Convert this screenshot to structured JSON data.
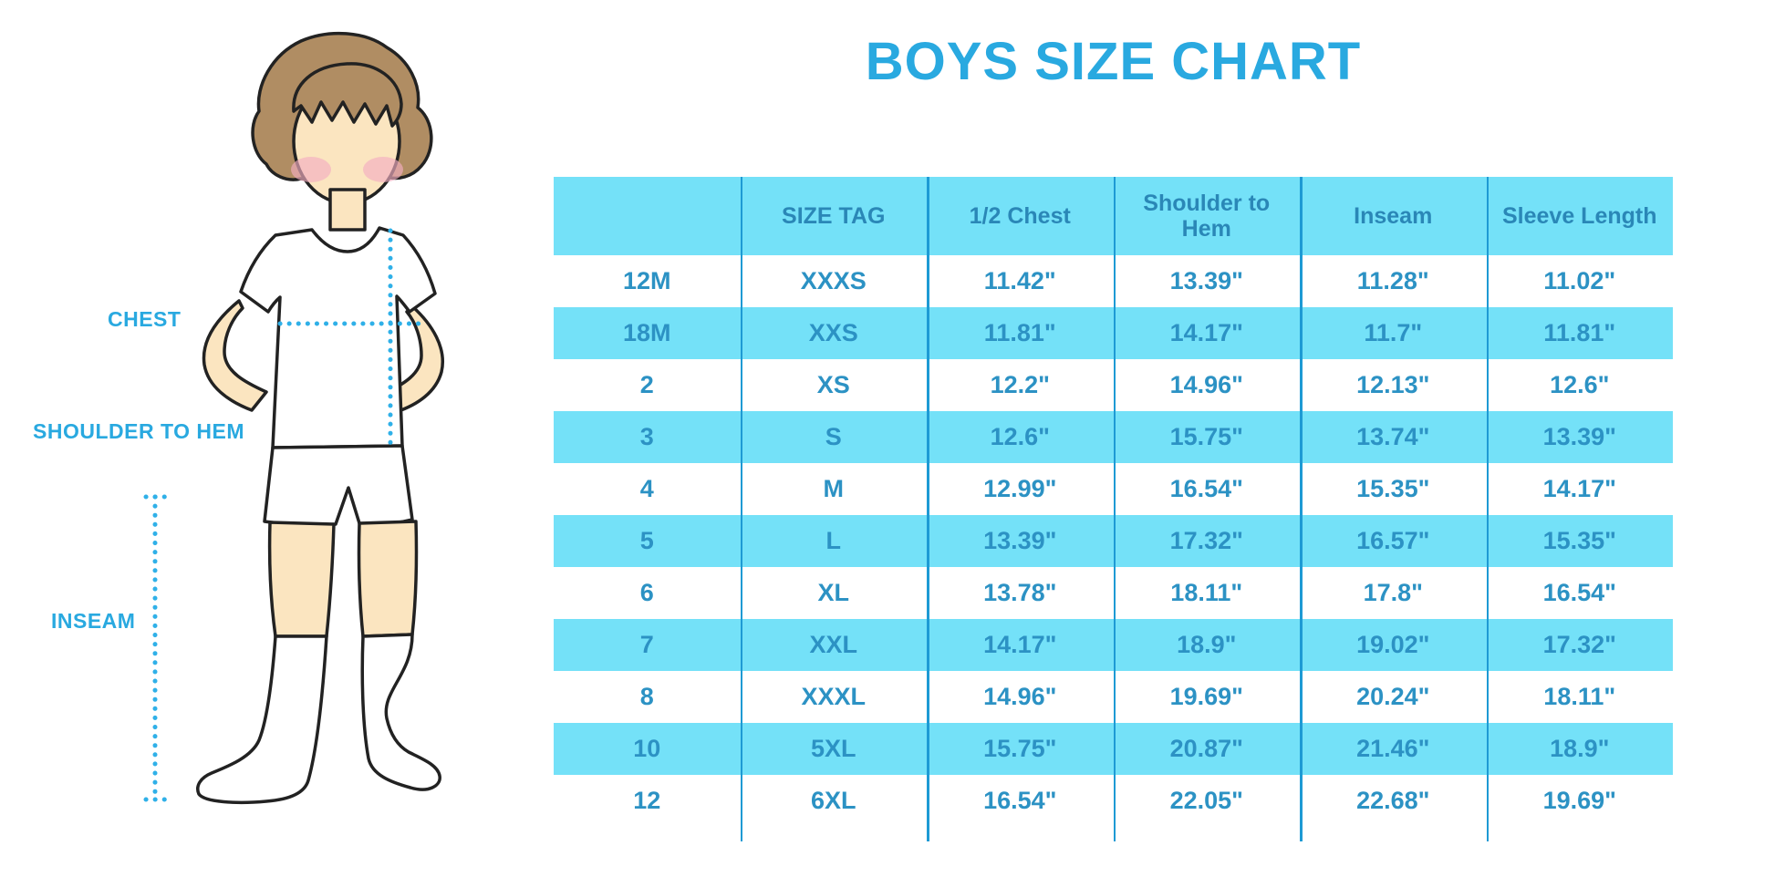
{
  "title": "BOYS SIZE CHART",
  "illustration": {
    "labels": {
      "chest": "CHEST",
      "shoulder_to_hem": "SHOULDER TO HEM",
      "inseam": "INSEAM"
    }
  },
  "colors": {
    "accent_blue": "#29a9e0",
    "stripe_blue": "#74e1f8",
    "divider_blue": "#1e9ad4",
    "header_text_blue": "#2a87b7",
    "cell_text_blue": "#2c92c4",
    "dotted_line_blue": "#2fb0e8"
  },
  "chart_data": {
    "type": "table",
    "title": "BOYS SIZE CHART",
    "columns": [
      "",
      "SIZE TAG",
      "1/2 Chest",
      "Shoulder to Hem",
      "Inseam",
      "Sleeve Length"
    ],
    "rows": [
      [
        "12M",
        "XXXS",
        "11.42\"",
        "13.39\"",
        "11.28\"",
        "11.02\""
      ],
      [
        "18M",
        "XXS",
        "11.81\"",
        "14.17\"",
        "11.7\"",
        "11.81\""
      ],
      [
        "2",
        "XS",
        "12.2\"",
        "14.96\"",
        "12.13\"",
        "12.6\""
      ],
      [
        "3",
        "S",
        "12.6\"",
        "15.75\"",
        "13.74\"",
        "13.39\""
      ],
      [
        "4",
        "M",
        "12.99\"",
        "16.54\"",
        "15.35\"",
        "14.17\""
      ],
      [
        "5",
        "L",
        "13.39\"",
        "17.32\"",
        "16.57\"",
        "15.35\""
      ],
      [
        "6",
        "XL",
        "13.78\"",
        "18.11\"",
        "17.8\"",
        "16.54\""
      ],
      [
        "7",
        "XXL",
        "14.17\"",
        "18.9\"",
        "19.02\"",
        "17.32\""
      ],
      [
        "8",
        "XXXL",
        "14.96\"",
        "19.69\"",
        "20.24\"",
        "18.11\""
      ],
      [
        "10",
        "5XL",
        "15.75\"",
        "20.87\"",
        "21.46\"",
        "18.9\""
      ],
      [
        "12",
        "6XL",
        "16.54\"",
        "22.05\"",
        "22.68\"",
        "19.69\""
      ]
    ],
    "layout": {
      "striped": true,
      "stripe_pattern": "header and every second data row highlighted light blue",
      "internal_vertical_dividers": 5,
      "legend": "none",
      "grid": "vertical only"
    }
  }
}
